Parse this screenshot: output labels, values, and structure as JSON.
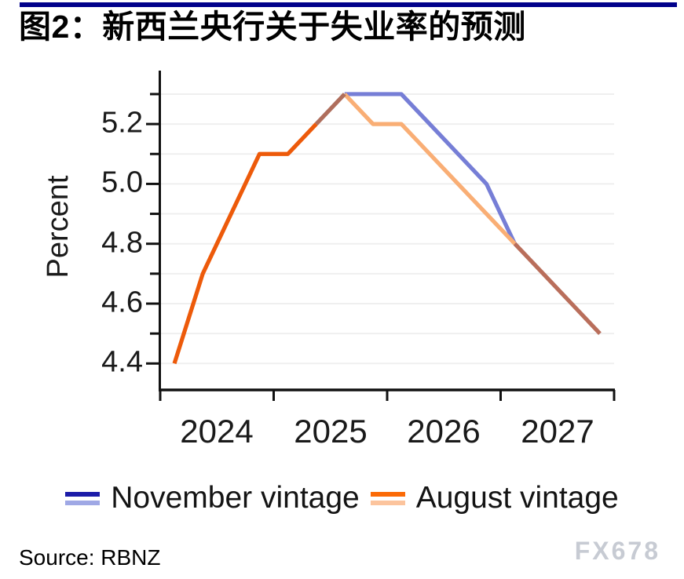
{
  "header": {
    "title": "图2：新西兰央行关于失业率的预测",
    "accent_bar_color": "#01018B"
  },
  "footer": {
    "source": "Source: RBNZ",
    "watermark": "FX678"
  },
  "legend": {
    "items": [
      {
        "label": "November vintage",
        "swatch_top": "#1C1CA8",
        "swatch_bottom": "#9FA8E5"
      },
      {
        "label": "August vintage",
        "swatch_top": "#FB6A07",
        "swatch_bottom": "#FCC49D"
      }
    ]
  },
  "chart_data": {
    "type": "line",
    "title": "",
    "xlabel": "",
    "ylabel": "Percent",
    "ylim": [
      4.35,
      5.38
    ],
    "grid": "horizontal",
    "legend_position": "bottom",
    "x_quarters": [
      "2024Q1",
      "2024Q2",
      "2024Q3",
      "2024Q4",
      "2025Q1",
      "2025Q2",
      "2025Q3",
      "2025Q4",
      "2026Q1",
      "2026Q2",
      "2026Q3",
      "2026Q4",
      "2027Q1",
      "2027Q2",
      "2027Q3",
      "2027Q4"
    ],
    "x_tick_labels": [
      "2024",
      "2025",
      "2026",
      "2027"
    ],
    "x_boundary_years": [
      2024,
      2025,
      2026,
      2027,
      2028
    ],
    "y_tick_labels": [
      "5.2",
      "5.0",
      "4.8",
      "4.6",
      "4.4"
    ],
    "y_major_ticks": [
      5.2,
      5.0,
      4.8,
      4.6,
      4.4
    ],
    "y_minor_ticks": [
      5.3,
      5.1,
      4.9,
      4.7,
      4.5
    ],
    "gridlines": [
      4.4,
      4.5,
      4.6,
      4.7,
      4.8,
      4.9,
      5.0,
      5.1,
      5.2,
      5.3
    ],
    "series": [
      {
        "name": "November vintage",
        "color": "#767ED6",
        "values": [
          4.4,
          4.7,
          4.9,
          5.1,
          5.1,
          5.2,
          5.3,
          5.3,
          5.3,
          5.2,
          5.1,
          5.0,
          4.8,
          4.7,
          4.6,
          4.5
        ]
      },
      {
        "name": "August vintage",
        "color": "#F9AE75",
        "values": [
          4.4,
          4.7,
          4.9,
          5.1,
          5.1,
          5.2,
          5.3,
          5.2,
          5.2,
          5.1,
          5.0,
          4.9,
          4.8,
          4.7,
          4.6,
          4.5
        ]
      }
    ],
    "segments": [
      {
        "series": 0,
        "from": 6,
        "to": 12,
        "color": "#767ED6"
      },
      {
        "series": 1,
        "from": 6,
        "to": 12,
        "color": "#F9AE75"
      },
      {
        "series": 1,
        "from": 12,
        "to": 15,
        "color": "#B96E5B"
      },
      {
        "series": 1,
        "from": 0,
        "to": 5,
        "color": "#ED5A0A"
      },
      {
        "series": 1,
        "from": 5,
        "to": 6,
        "color": "#AF6E5C"
      }
    ]
  }
}
